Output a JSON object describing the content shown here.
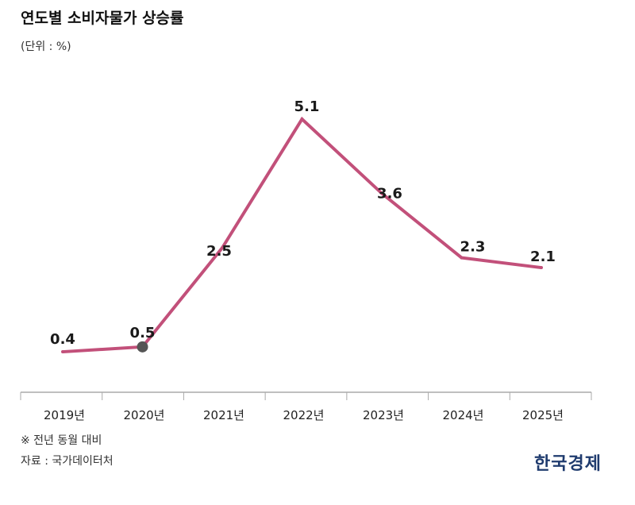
{
  "header": {
    "title": "연도별 소비자물가 상승률",
    "unit": "(단위 : %)"
  },
  "footer": {
    "note": "※ 전년 동월 대비",
    "source": "자료 : 국가데이터처",
    "brand": "한국경제"
  },
  "colors": {
    "line": "#c2507a",
    "marker": "#555555",
    "axis": "#aaaaaa"
  },
  "chart_data": {
    "type": "line",
    "categories": [
      "2019년",
      "2020년",
      "2021년",
      "2022년",
      "2023년",
      "2024년",
      "2025년"
    ],
    "values": [
      0.4,
      0.5,
      2.5,
      5.1,
      3.6,
      2.3,
      2.1
    ],
    "data_labels": [
      "0.4",
      "0.5",
      "2.5",
      "5.1",
      "3.6",
      "2.3",
      "2.1"
    ],
    "highlight_index": 1,
    "title": "연도별 소비자물가 상승률",
    "xlabel": "",
    "ylabel": "",
    "ylim": [
      0,
      5.5
    ],
    "grid": false,
    "legend": "none"
  }
}
